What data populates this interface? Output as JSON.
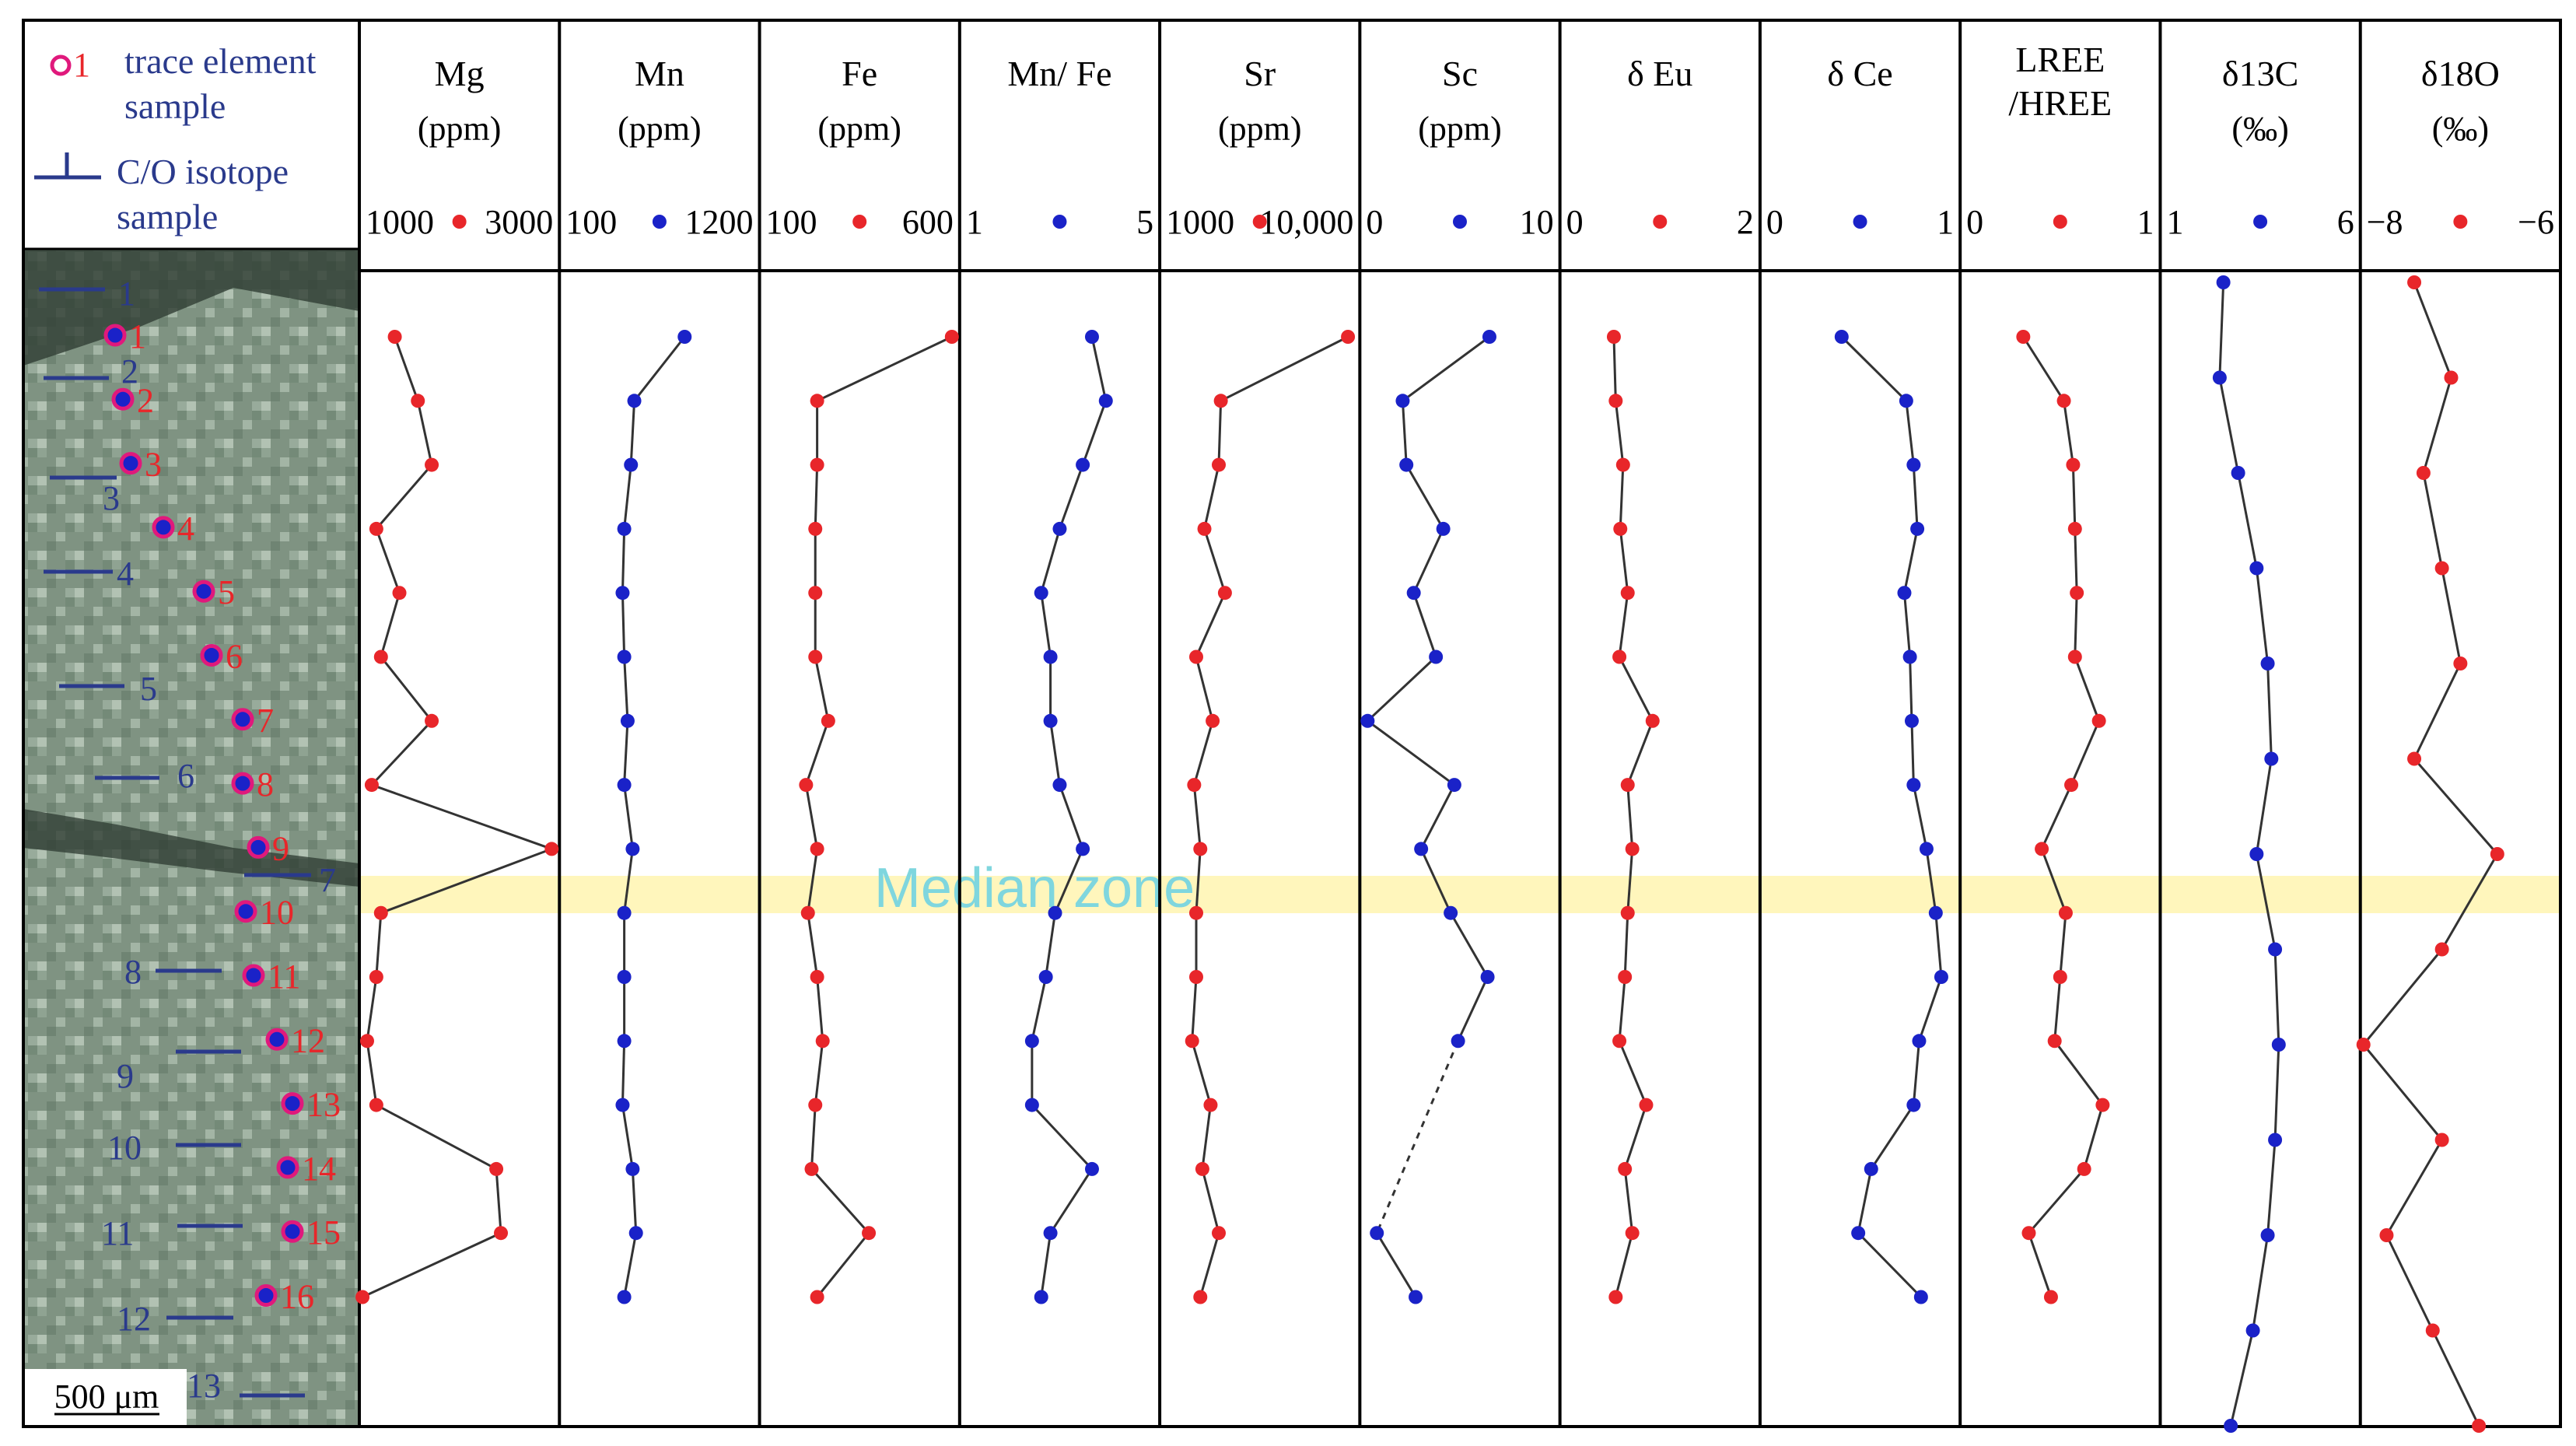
{
  "colors": {
    "red": "#e8262a",
    "blue": "#1a22c8",
    "axis_label_blue": "#2a3a8c",
    "sample_marker_ring": "#e0197c",
    "median_band": "#fff4b0",
    "median_text": "#7fd6de",
    "line": "#333333"
  },
  "legend": {
    "trace_marker_label": "1",
    "trace_text": "trace element sample",
    "co_marker_label": "1",
    "co_text": "C/O isotope sample"
  },
  "scale_bar": {
    "label": "500 μm"
  },
  "median_zone_label": "Median zone",
  "chart_data": {
    "type": "line",
    "orientation": "vertical-profile",
    "y_axis": "relative position along traverse (top to bottom, no printed scale)",
    "trace_sample_labels": [
      "1",
      "2",
      "3",
      "4",
      "5",
      "6",
      "7",
      "8",
      "9",
      "10",
      "11",
      "12",
      "13",
      "14",
      "15",
      "16"
    ],
    "co_sample_labels": [
      "1",
      "2",
      "3",
      "4",
      "5",
      "6",
      "7",
      "8",
      "9",
      "10",
      "11",
      "12",
      "13"
    ],
    "panels": [
      {
        "title": "Mg",
        "unit": "(ppm)",
        "min_label": "1000",
        "max_label": "3000",
        "xlim": [
          1000,
          3000
        ],
        "color": "red",
        "samples": "trace",
        "values": [
          1300,
          1550,
          1700,
          1100,
          1350,
          1150,
          1700,
          1050,
          3000,
          1150,
          1100,
          1000,
          1100,
          2400,
          2450,
          950
        ]
      },
      {
        "title": "Mn",
        "unit": "(ppm)",
        "min_label": "100",
        "max_label": "1200",
        "xlim": [
          100,
          1200
        ],
        "color": "blue",
        "samples": "trace",
        "values": [
          800,
          500,
          480,
          440,
          430,
          440,
          460,
          440,
          490,
          440,
          440,
          440,
          430,
          490,
          510,
          440
        ]
      },
      {
        "title": "Fe",
        "unit": "(ppm)",
        "min_label": "100",
        "max_label": "600",
        "xlim": [
          100,
          600
        ],
        "color": "red",
        "samples": "trace",
        "values": [
          600,
          235,
          235,
          230,
          230,
          230,
          265,
          205,
          235,
          210,
          235,
          250,
          230,
          220,
          375,
          235
        ]
      },
      {
        "title": "Mn/ Fe",
        "unit": "",
        "min_label": "1",
        "max_label": "5",
        "xlim": [
          1,
          5
        ],
        "color": "blue",
        "samples": "trace",
        "values": [
          3.7,
          4.0,
          3.5,
          3.0,
          2.6,
          2.8,
          2.8,
          3.0,
          3.5,
          2.9,
          2.7,
          2.4,
          2.4,
          3.7,
          2.8,
          2.6
        ]
      },
      {
        "title": "Sr",
        "unit": "(ppm)",
        "min_label": "1000",
        "max_label": "10,000",
        "xlim": [
          1000,
          10000
        ],
        "color": "red",
        "samples": "trace",
        "values": [
          9800,
          3600,
          3500,
          2800,
          3800,
          2400,
          3200,
          2300,
          2600,
          2400,
          2400,
          2200,
          3100,
          2700,
          3500,
          2600
        ]
      },
      {
        "title": "Sc",
        "unit": "(ppm)",
        "min_label": "0",
        "max_label": "10",
        "xlim": [
          0,
          10
        ],
        "color": "blue",
        "samples": "trace",
        "values": [
          6.6,
          1.9,
          2.1,
          4.1,
          2.5,
          3.7,
          0.0,
          4.7,
          2.9,
          4.5,
          6.5,
          4.9,
          null,
          null,
          0.5,
          2.6
        ]
      },
      {
        "title": "δ Eu",
        "unit": "",
        "min_label": "0",
        "max_label": "2",
        "xlim": [
          0,
          2
        ],
        "color": "red",
        "samples": "trace",
        "values": [
          0.5,
          0.52,
          0.6,
          0.57,
          0.65,
          0.56,
          0.92,
          0.65,
          0.7,
          0.65,
          0.62,
          0.56,
          0.85,
          0.62,
          0.7,
          0.52
        ]
      },
      {
        "title": "δ Ce",
        "unit": "",
        "min_label": "0",
        "max_label": "1",
        "xlim": [
          0,
          1
        ],
        "color": "blue",
        "samples": "trace",
        "values": [
          0.4,
          0.75,
          0.79,
          0.81,
          0.74,
          0.77,
          0.78,
          0.79,
          0.86,
          0.91,
          0.94,
          0.82,
          0.79,
          0.56,
          0.49,
          0.83
        ]
      },
      {
        "title": "LREE",
        "title_line2": "/HREE",
        "unit": "",
        "min_label": "0",
        "max_label": "1",
        "xlim": [
          0,
          1
        ],
        "color": "red",
        "samples": "trace",
        "values": [
          0.3,
          0.52,
          0.57,
          0.58,
          0.59,
          0.58,
          0.71,
          0.56,
          0.4,
          0.53,
          0.5,
          0.47,
          0.73,
          0.63,
          0.33,
          0.45
        ]
      },
      {
        "title": "δ13C",
        "unit": "(‰)",
        "min_label": "1",
        "max_label": "6",
        "xlim": [
          1,
          6
        ],
        "color": "blue",
        "samples": "co",
        "values": [
          2.5,
          2.4,
          2.9,
          3.4,
          3.7,
          3.8,
          3.4,
          3.9,
          4.0,
          3.9,
          3.7,
          3.3,
          2.7
        ]
      },
      {
        "title": "δ18O",
        "unit": "(‰)",
        "min_label": "−8",
        "max_label": "−6",
        "xlim": [
          -8,
          -6
        ],
        "color": "red",
        "samples": "co",
        "values": [
          -7.5,
          -7.1,
          -7.4,
          -7.2,
          -7.0,
          -7.5,
          -6.6,
          -7.2,
          -8.1,
          -7.2,
          -7.8,
          -7.3,
          -6.8
        ]
      }
    ]
  }
}
